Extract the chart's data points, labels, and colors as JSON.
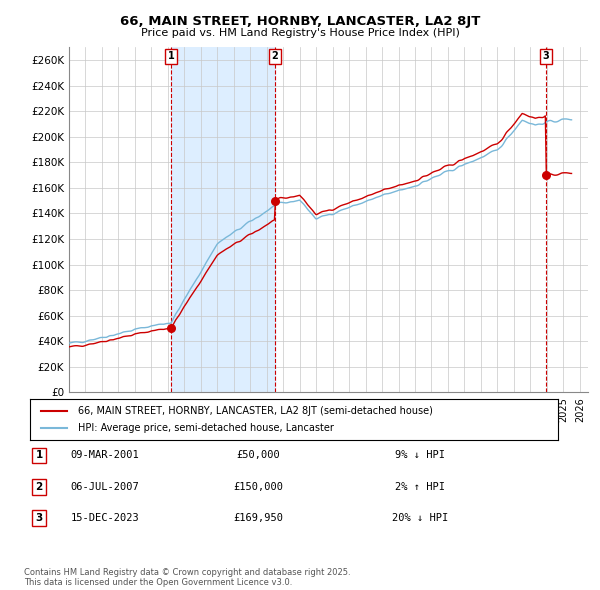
{
  "title": "66, MAIN STREET, HORNBY, LANCASTER, LA2 8JT",
  "subtitle": "Price paid vs. HM Land Registry's House Price Index (HPI)",
  "ylabel_ticks": [
    "£0",
    "£20K",
    "£40K",
    "£60K",
    "£80K",
    "£100K",
    "£120K",
    "£140K",
    "£160K",
    "£180K",
    "£200K",
    "£220K",
    "£240K",
    "£260K"
  ],
  "ytick_values": [
    0,
    20000,
    40000,
    60000,
    80000,
    100000,
    120000,
    140000,
    160000,
    180000,
    200000,
    220000,
    240000,
    260000
  ],
  "ylim": [
    0,
    270000
  ],
  "xlim_start": 1995.0,
  "xlim_end": 2026.5,
  "legend_line1": "66, MAIN STREET, HORNBY, LANCASTER, LA2 8JT (semi-detached house)",
  "legend_line2": "HPI: Average price, semi-detached house, Lancaster",
  "transaction1_date": "09-MAR-2001",
  "transaction1_price": "£50,000",
  "transaction1_hpi": "9% ↓ HPI",
  "transaction1_year": 2001.19,
  "transaction1_value": 50000,
  "transaction2_date": "06-JUL-2007",
  "transaction2_price": "£150,000",
  "transaction2_hpi": "2% ↑ HPI",
  "transaction2_year": 2007.51,
  "transaction2_value": 150000,
  "transaction3_date": "15-DEC-2023",
  "transaction3_price": "£169,950",
  "transaction3_hpi": "20% ↓ HPI",
  "transaction3_year": 2023.96,
  "transaction3_value": 169950,
  "footer": "Contains HM Land Registry data © Crown copyright and database right 2025.\nThis data is licensed under the Open Government Licence v3.0.",
  "hpi_color": "#7ab8d9",
  "sale_color": "#cc0000",
  "bg_color": "#ffffff",
  "grid_color": "#c8c8c8",
  "shade_color": "#ddeeff"
}
